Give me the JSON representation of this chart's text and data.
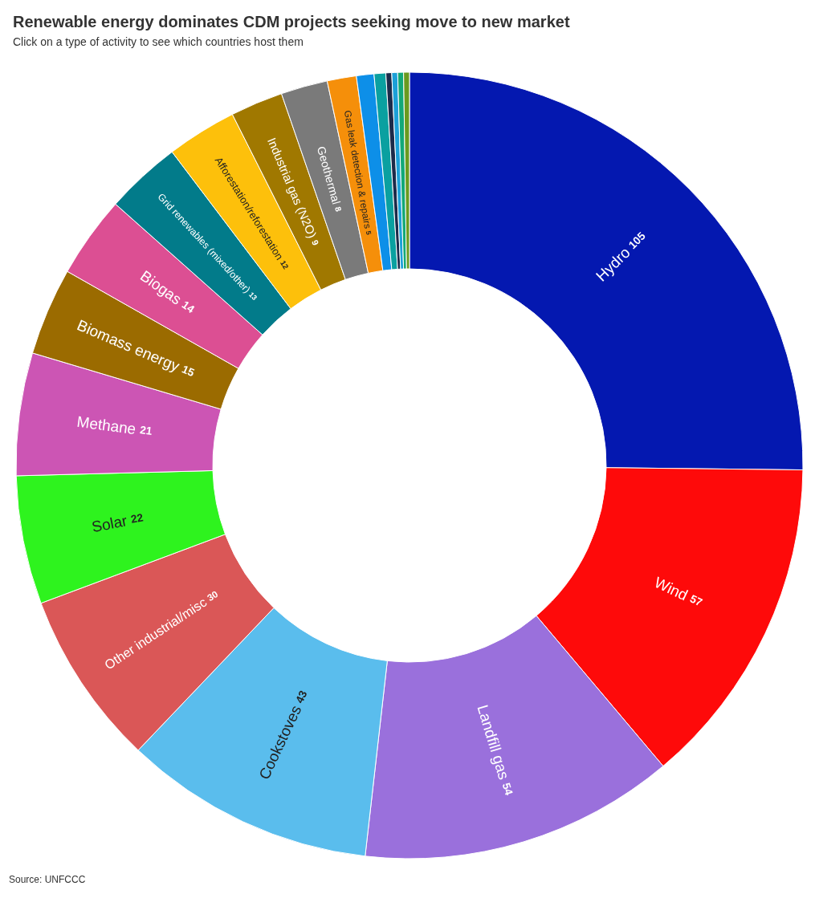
{
  "chart_data": {
    "type": "donut",
    "title": "Renewable energy dominates CDM projects seeking move to new market",
    "subtitle": "Click on a type of activity to see which countries host them",
    "annotations": [
      "Source: UNFCCC"
    ],
    "legend": false,
    "categories": [
      "Hydro",
      "Wind",
      "Landfill gas",
      "Cookstoves",
      "Other industrial/misc",
      "Solar",
      "Methane",
      "Biomass energy",
      "Biogas",
      "Grid renewables (mixed/other)",
      "Afforestation/reforestation",
      "Industrial gas (N2O)",
      "Geothermal",
      "Gas leak detection & repairs",
      null,
      null,
      null,
      null,
      null,
      null
    ],
    "values": [
      105,
      57,
      54,
      43,
      30,
      22,
      21,
      15,
      14,
      13,
      12,
      9,
      8,
      5,
      3,
      2,
      1,
      1,
      1,
      1
    ],
    "value_labels": [
      "105",
      "57",
      "54",
      "43",
      "30",
      "22",
      "21",
      "15",
      "14",
      "13",
      "12",
      "9",
      "8",
      "5",
      null,
      null,
      null,
      null,
      null,
      null
    ],
    "colors": [
      "#0418b0",
      "#fe0a0a",
      "#9a70dc",
      "#5abded",
      "#da5757",
      "#2ef31e",
      "#cc55b4",
      "#9b6b00",
      "#dc4f93",
      "#027b8a",
      "#fdc00b",
      "#a07800",
      "#7a7a7a",
      "#f58f0a",
      "#0d8fe8",
      "#0aa0a0",
      "#1c2b4a",
      "#1ca0d8",
      "#12a878",
      "#6a9a20"
    ]
  }
}
